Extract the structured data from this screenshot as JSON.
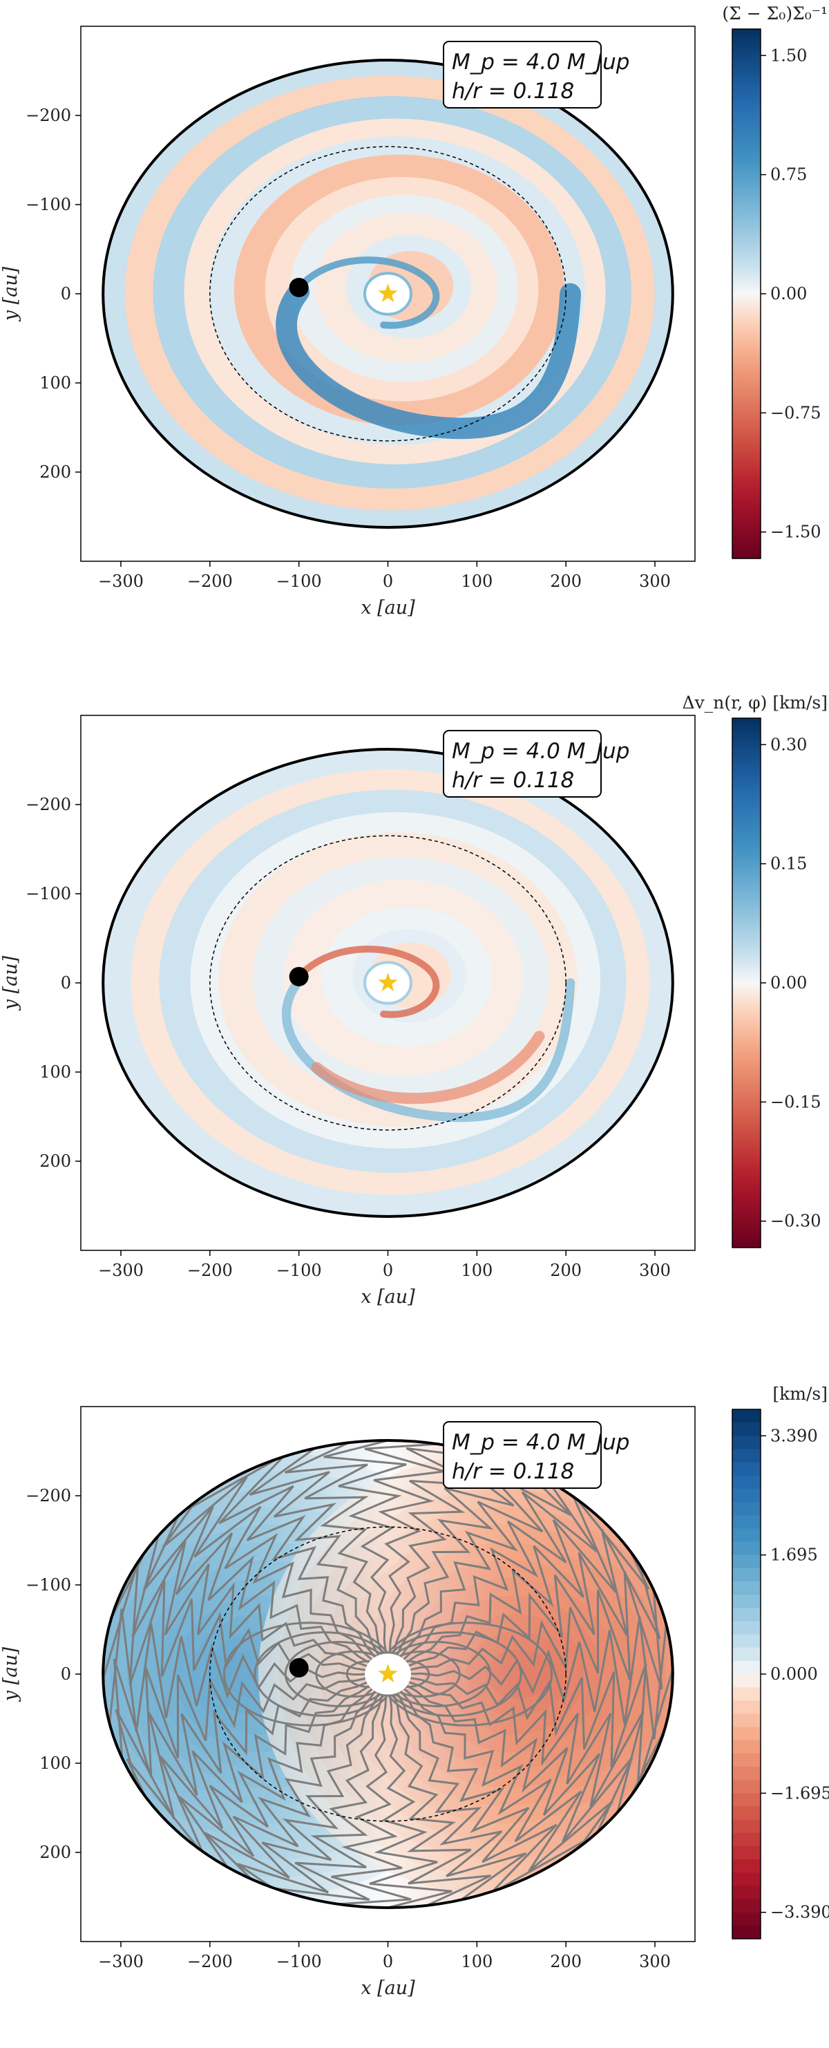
{
  "panels": [
    {
      "id": "surface-density",
      "annotation": {
        "line1": "M_p = 4.0 M_Jup",
        "line2": "h/r = 0.118"
      },
      "colorbar_title": "(Σ − Σ₀)Σ₀⁻¹",
      "colorbar_ticks": [
        "1.50",
        "0.75",
        "0.00",
        "−0.75",
        "−1.50"
      ]
    },
    {
      "id": "velocity-perturbation",
      "annotation": {
        "line1": "M_p = 4.0 M_Jup",
        "line2": "h/r = 0.118"
      },
      "colorbar_title": "Δv_n(r, φ)   [km/s]",
      "colorbar_ticks": [
        "0.30",
        "0.15",
        "0.00",
        "−0.15",
        "−0.30"
      ]
    },
    {
      "id": "line-of-sight-velocity",
      "annotation": {
        "line1": "M_p = 4.0 M_Jup",
        "line2": "h/r = 0.118"
      },
      "colorbar_title": "[km/s]",
      "colorbar_ticks": [
        "3.390",
        "1.695",
        "0.000",
        "−1.695",
        "−3.390"
      ]
    }
  ],
  "axes": {
    "xlabel": "x  [au]",
    "ylabel": "y  [au]",
    "xticks": [
      "−300",
      "−200",
      "−100",
      "0",
      "100",
      "200",
      "300"
    ],
    "yticks": [
      "200",
      "100",
      "0",
      "−100",
      "−200"
    ]
  },
  "chart_data": [
    {
      "type": "heatmap",
      "panel": 1,
      "xlabel": "x  [au]",
      "ylabel": "y  [au]",
      "xlim": [
        -345,
        345
      ],
      "ylim": [
        -300,
        300
      ],
      "xticks": [
        -300,
        -200,
        -100,
        0,
        100,
        200,
        300
      ],
      "yticks": [
        -200,
        -100,
        0,
        100,
        200
      ],
      "colorbar": {
        "label": "(Σ − Σ₀)Σ₀⁻¹",
        "range": [
          -1.5,
          1.5
        ],
        "ticks": [
          1.5,
          0.75,
          0,
          -0.75,
          -1.5
        ],
        "cmap": "RdBu"
      },
      "disk_outer_edge": {
        "cx": 0,
        "cy": 0,
        "rx": 320,
        "ry": 262
      },
      "planet_orbit": {
        "cx": 0,
        "cy": 0,
        "rx": 200,
        "ry": 165
      },
      "planet": {
        "x": -100,
        "y": 7
      },
      "star": {
        "x": 0,
        "y": 0
      },
      "annotation": [
        "M_p = 4.0 M_Jup",
        "h/r = 0.118"
      ]
    },
    {
      "type": "heatmap",
      "panel": 2,
      "xlabel": "x  [au]",
      "ylabel": "y  [au]",
      "xlim": [
        -345,
        345
      ],
      "ylim": [
        -300,
        300
      ],
      "xticks": [
        -300,
        -200,
        -100,
        0,
        100,
        200,
        300
      ],
      "yticks": [
        -200,
        -100,
        0,
        100,
        200
      ],
      "colorbar": {
        "label": "Δv_n(r, φ)  [km/s]",
        "range": [
          -0.3,
          0.3
        ],
        "ticks": [
          0.3,
          0.15,
          0,
          -0.15,
          -0.3
        ],
        "cmap": "RdBu"
      },
      "disk_outer_edge": {
        "cx": 0,
        "cy": 0,
        "rx": 320,
        "ry": 262
      },
      "planet_orbit": {
        "cx": 0,
        "cy": 0,
        "rx": 200,
        "ry": 165
      },
      "planet": {
        "x": -100,
        "y": 7
      },
      "star": {
        "x": 0,
        "y": 0
      },
      "annotation": [
        "M_p = 4.0 M_Jup",
        "h/r = 0.118"
      ]
    },
    {
      "type": "heatmap",
      "panel": 3,
      "xlabel": "x  [au]",
      "ylabel": "y  [au]",
      "xlim": [
        -345,
        345
      ],
      "ylim": [
        -300,
        300
      ],
      "xticks": [
        -300,
        -200,
        -100,
        0,
        100,
        200,
        300
      ],
      "yticks": [
        -200,
        -100,
        0,
        100,
        200
      ],
      "colorbar": {
        "label": "[km/s]",
        "range": [
          -3.39,
          3.39
        ],
        "ticks": [
          3.39,
          1.695,
          0,
          -1.695,
          -3.39
        ],
        "cmap": "RdBu",
        "discrete": true
      },
      "contours": true,
      "disk_outer_edge": {
        "cx": 0,
        "cy": 0,
        "rx": 320,
        "ry": 262
      },
      "planet_orbit": {
        "cx": 0,
        "cy": 0,
        "rx": 200,
        "ry": 165
      },
      "planet": {
        "x": -100,
        "y": 7
      },
      "star": {
        "x": 0,
        "y": 0
      },
      "annotation": [
        "M_p = 4.0 M_Jup",
        "h/r = 0.118"
      ]
    }
  ]
}
